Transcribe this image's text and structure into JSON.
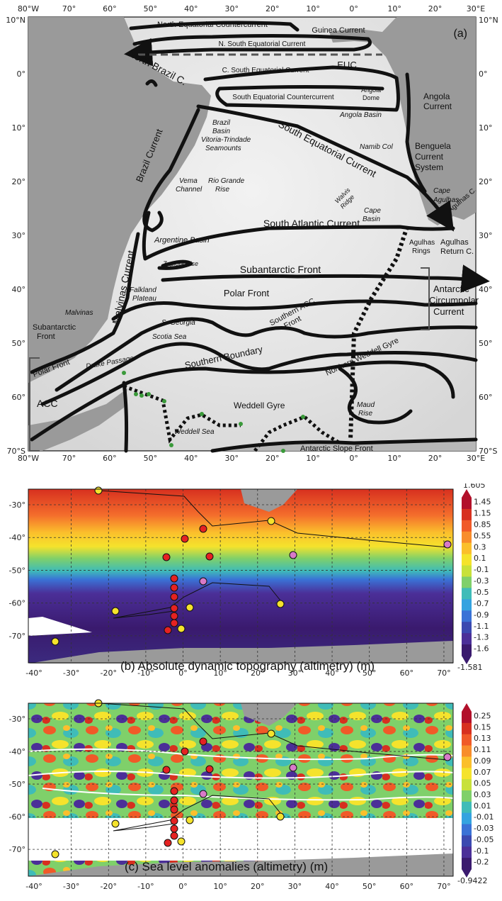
{
  "panel_a": {
    "letter": "(a)",
    "lon_ticks": [
      "80°W",
      "70°",
      "60°",
      "50°",
      "40°",
      "30°",
      "20°",
      "10°",
      "0°",
      "10°",
      "20°",
      "30°E"
    ],
    "lat_ticks_left": [
      "10°N",
      "0°",
      "10°",
      "20°",
      "30°",
      "40°",
      "50°",
      "60°",
      "70°S"
    ],
    "lat_ticks_right": [
      "10°N",
      "0°",
      "10°",
      "20°",
      "30°",
      "40°",
      "50°",
      "60°",
      "70°S"
    ],
    "currents": {
      "north_equatorial_countercurrent": "North Equatorial Countercurrent",
      "guinea_current": "Guinea Current",
      "n_south_equatorial_current": "N. South Equatorial Current",
      "euc": "EUC",
      "north_brazil_c": "North Brazil C.",
      "c_south_equatorial_current": "C. South Equatorial Current",
      "south_equatorial_countercurrent": "South Equatorial Countercurrent",
      "angola_current": "Angola Current",
      "south_equatorial_current": "South Equatorial Current",
      "benguela_current_system": [
        "Benguela",
        "Current",
        "System"
      ],
      "brazil_current": "Brazil Current",
      "south_atlantic_current": "South Atlantic Current",
      "agulhas_c": "Agulhas C.",
      "agulhas_rings": [
        "Agulhas",
        "Rings"
      ],
      "agulhas_return_c": [
        "Agulhas",
        "Return C."
      ],
      "malvinas_current": "Malvinas Current",
      "subantarctic_front_main": "Subantarctic Front",
      "subantarctic_front_left": [
        "Subantarctic",
        "Front"
      ],
      "polar_front_main": "Polar Front",
      "polar_front_left": "Polar Front",
      "antarctic_circumpolar_current": [
        "Antarctic",
        "Circumpolar",
        "Current"
      ],
      "southern_acc_front": [
        "Southern ACC",
        "Front"
      ],
      "southern_boundary": "Southern Boundary",
      "northern_weddell_gyre": "Northern Weddell Gyre",
      "weddell_gyre": "Weddell Gyre",
      "antarctic_slope_front": "Antarctic Slope Front",
      "acc_bracket": "ACC"
    },
    "features": {
      "angola_dome": [
        "Angola",
        "Dome"
      ],
      "angola_basin": "Angola Basin",
      "brazil_basin": [
        "Brazil",
        "Basin",
        "Vitoria-Trindade",
        "Seamounts"
      ],
      "namib_col": "Namib Col",
      "walvis_ridge": [
        "Walvis",
        "Ridge"
      ],
      "cape_agulhas": [
        "Cape",
        "Agulhas"
      ],
      "vema_channel": [
        "Vema",
        "Channel"
      ],
      "rio_grande_rise": [
        "Rio Grande",
        "Rise"
      ],
      "cape_basin": [
        "Cape",
        "Basin"
      ],
      "argentine_basin": "Argentine Basin",
      "zapiola_rise": "Zapiola Rise",
      "falkland_plateau": [
        "Falkland",
        "Plateau"
      ],
      "malvinas": "Malvinas",
      "s_georgia": "S. Georgia",
      "scotia_sea": "Scotia Sea",
      "drake_passage": "Drake Passage",
      "maud_rise": [
        "Maud",
        "Rise"
      ],
      "weddell_sea": "Weddell Sea"
    }
  },
  "panel_b": {
    "caption": "(b) Absolute dynamic topography (altimetry) (m)",
    "colorbar_top": "1.605",
    "colorbar_bottom": "-1.581",
    "colorbar_labels": [
      "1.45",
      "1.15",
      "0.85",
      "0.55",
      "0.3",
      "0.1",
      "-0.1",
      "-0.3",
      "-0.5",
      "-0.7",
      "-0.9",
      "-1.1",
      "-1.3",
      "-1.6"
    ],
    "colors": [
      "#b2102a",
      "#d7301f",
      "#f05a28",
      "#f88d2c",
      "#fbbf2c",
      "#f5e32c",
      "#c8e13a",
      "#7fd06a",
      "#3fbcb8",
      "#34a3e0",
      "#3a72d6",
      "#3b49b0",
      "#4b2f98",
      "#3a1a6e"
    ]
  },
  "panel_c": {
    "caption": "(c) Sea level anomalies (altimetry) (m)",
    "colorbar_bottom": "-0.9422",
    "colorbar_labels": [
      "0.25",
      "0.15",
      "0.13",
      "0.11",
      "0.09",
      "0.07",
      "0.05",
      "0.03",
      "0.01",
      "-0.01",
      "-0.03",
      "-0.05",
      "-0.1",
      "-0.2"
    ],
    "colors": [
      "#b2102a",
      "#d7301f",
      "#f05a28",
      "#f88d2c",
      "#fbbf2c",
      "#f5e32c",
      "#c8e13a",
      "#7fd06a",
      "#3fbcb8",
      "#34a3e0",
      "#3a72d6",
      "#3b49b0",
      "#4b2f98",
      "#3a1a6e"
    ]
  },
  "bottom_maps": {
    "lon_ticks": [
      "-40°",
      "-30°",
      "-20°",
      "-10°",
      "0°",
      "10°",
      "20°",
      "30°",
      "40°",
      "50°",
      "60°",
      "70°"
    ],
    "lat_ticks": [
      "-30°",
      "-40°",
      "-50°",
      "-60°",
      "-70°"
    ]
  }
}
